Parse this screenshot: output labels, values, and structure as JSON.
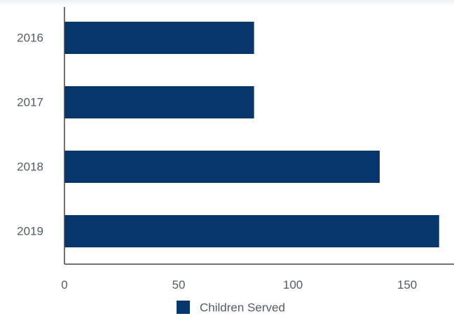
{
  "colors": {
    "bar": "#06366b",
    "axis": "#444444",
    "text": "#555c63"
  },
  "chart_data": {
    "type": "bar",
    "orientation": "horizontal",
    "categories": [
      "2016",
      "2017",
      "2018",
      "2019"
    ],
    "series": [
      {
        "name": "Children Served",
        "values": [
          83,
          83,
          138,
          164
        ],
        "color": "#06366b"
      }
    ],
    "title": "",
    "xlabel": "",
    "ylabel": "",
    "xlim": [
      0,
      165
    ],
    "x_ticks": [
      0,
      50,
      100,
      150
    ],
    "grid": false,
    "legend": {
      "position": "bottom",
      "entries": [
        "Children Served"
      ]
    }
  }
}
